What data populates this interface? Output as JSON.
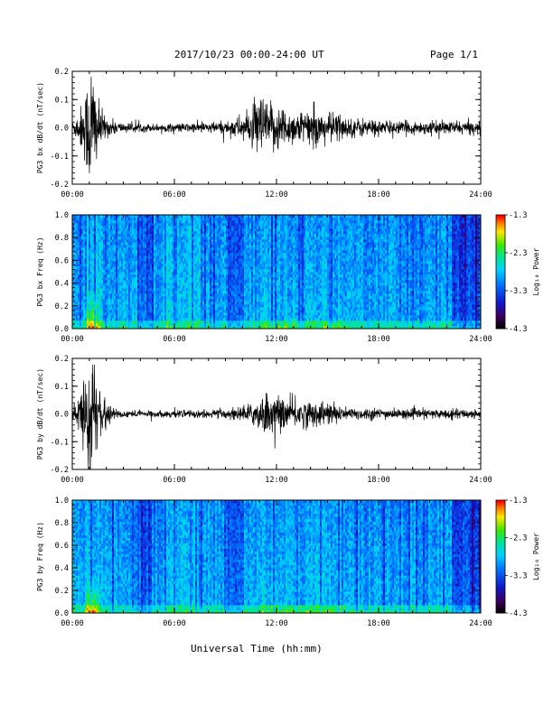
{
  "header": {
    "title": "2017/10/23  00:00-24:00 UT",
    "page": "Page 1/1"
  },
  "footer": {
    "xlabel": "Universal Time (hh:mm)"
  },
  "chart_data": [
    {
      "type": "line",
      "ylabel": "PG3 bx dB/dt (nT/sec)",
      "xlabel": "",
      "xlim": [
        0,
        24
      ],
      "ylim": [
        -0.2,
        0.2
      ],
      "xticks": [
        "00:00",
        "06:00",
        "12:00",
        "18:00",
        "24:00"
      ],
      "yticks": [
        "-0.2",
        "-0.1",
        "0.0",
        "0.1",
        "0.2"
      ],
      "envelope": {
        "x": [
          0,
          0.4,
          0.8,
          1.0,
          1.2,
          1.5,
          2.0,
          3.0,
          5.0,
          7.0,
          9.0,
          10.5,
          11.0,
          11.5,
          12.0,
          13.0,
          14.0,
          15.0,
          15.5,
          16.0,
          17.0,
          19.0,
          21.0,
          23.0,
          24.0
        ],
        "amp": [
          0.02,
          0.05,
          0.12,
          0.22,
          0.22,
          0.08,
          0.03,
          0.015,
          0.012,
          0.015,
          0.02,
          0.05,
          0.11,
          0.07,
          0.08,
          0.05,
          0.06,
          0.04,
          0.06,
          0.03,
          0.03,
          0.02,
          0.02,
          0.02,
          0.02
        ]
      }
    },
    {
      "type": "heatmap",
      "ylabel": "PG3 bx Freq (Hz)",
      "xlabel": "",
      "xlim": [
        0,
        24
      ],
      "ylim": [
        0.0,
        1.0
      ],
      "xticks": [
        "00:00",
        "06:00",
        "12:00",
        "18:00",
        "24:00"
      ],
      "yticks": [
        "0.0",
        "0.2",
        "0.4",
        "0.6",
        "0.8",
        "1.0"
      ],
      "colorbar": {
        "label": "Log₁₀ Power",
        "range": [
          -4.3,
          -1.3
        ],
        "ticks": [
          "-1.3",
          "-2.3",
          "-3.3",
          "-4.3"
        ]
      }
    },
    {
      "type": "line",
      "ylabel": "PG3 by dB/dt (nT/sec)",
      "xlabel": "",
      "xlim": [
        0,
        24
      ],
      "ylim": [
        -0.2,
        0.2
      ],
      "xticks": [
        "00:00",
        "06:00",
        "12:00",
        "18:00",
        "24:00"
      ],
      "yticks": [
        "-0.2",
        "-0.1",
        "0.0",
        "0.1",
        "0.2"
      ],
      "envelope": {
        "x": [
          0,
          0.4,
          0.8,
          1.0,
          1.2,
          1.5,
          2.0,
          3.0,
          5.0,
          7.0,
          9.0,
          10.5,
          11.0,
          11.5,
          12.0,
          13.0,
          14.0,
          15.0,
          15.5,
          16.0,
          17.0,
          19.0,
          21.0,
          23.0,
          24.0
        ],
        "amp": [
          0.02,
          0.05,
          0.14,
          0.24,
          0.22,
          0.07,
          0.03,
          0.012,
          0.01,
          0.012,
          0.015,
          0.03,
          0.06,
          0.07,
          0.05,
          0.05,
          0.04,
          0.04,
          0.03,
          0.02,
          0.02,
          0.015,
          0.015,
          0.015,
          0.015
        ]
      }
    },
    {
      "type": "heatmap",
      "ylabel": "PG3 by Freq (Hz)",
      "xlabel": "",
      "xlim": [
        0,
        24
      ],
      "ylim": [
        0.0,
        1.0
      ],
      "xticks": [
        "00:00",
        "06:00",
        "12:00",
        "18:00",
        "24:00"
      ],
      "yticks": [
        "0.0",
        "0.2",
        "0.4",
        "0.6",
        "0.8",
        "1.0"
      ],
      "colorbar": {
        "label": "Log₁₀ Power",
        "range": [
          -4.3,
          -1.3
        ],
        "ticks": [
          "-1.3",
          "-2.3",
          "-3.3",
          "-4.3"
        ]
      }
    }
  ]
}
